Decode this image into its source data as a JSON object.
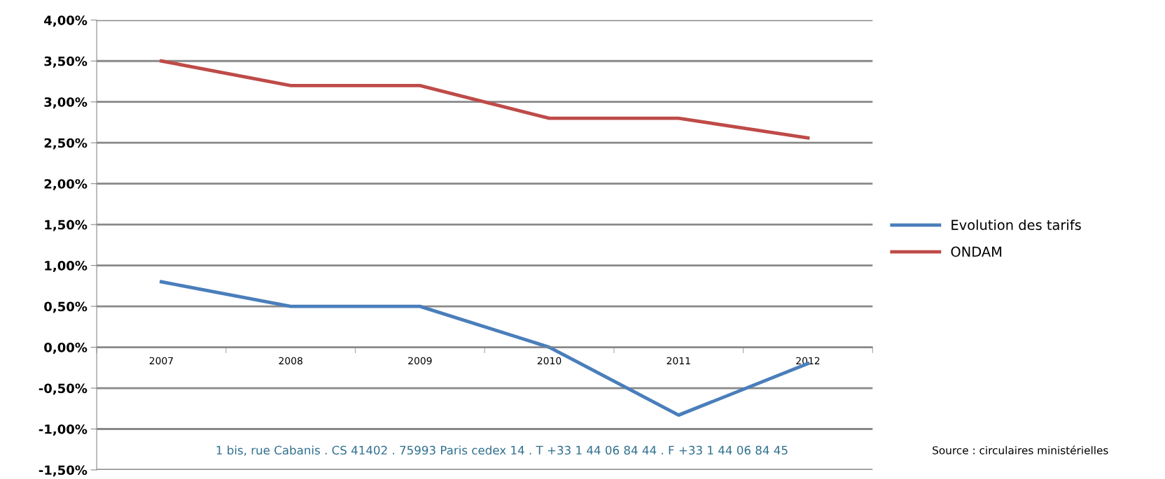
{
  "chart_data": {
    "type": "line",
    "categories": [
      "2007",
      "2008",
      "2009",
      "2010",
      "2011",
      "2012"
    ],
    "series": [
      {
        "name": "Evolution des tarifs",
        "color": "#4a7ebb",
        "values": [
          0.8,
          0.5,
          0.5,
          0.0,
          -0.83,
          -0.2
        ]
      },
      {
        "name": "ONDAM",
        "color": "#be4b48",
        "values": [
          3.5,
          3.2,
          3.2,
          2.8,
          2.8,
          2.56
        ]
      }
    ],
    "ylim": [
      -1.5,
      4.0
    ],
    "yticks": [
      {
        "value": -1.5,
        "label": "-1,50%"
      },
      {
        "value": -1.0,
        "label": "-1,00%"
      },
      {
        "value": -0.5,
        "label": "-0,50%"
      },
      {
        "value": 0,
        "label": "0,00%"
      },
      {
        "value": 0.5,
        "label": "0,50%"
      },
      {
        "value": 1.0,
        "label": "1,00%"
      },
      {
        "value": 1.5,
        "label": "1,50%"
      },
      {
        "value": 2.0,
        "label": "2,00%"
      },
      {
        "value": 2.5,
        "label": "2,50%"
      },
      {
        "value": 3.0,
        "label": "3,00%"
      },
      {
        "value": 3.5,
        "label": "3,50%"
      },
      {
        "value": 4.0,
        "label": "4,00%"
      }
    ],
    "grid": "y",
    "legend": "right",
    "marker": "none",
    "line_style": "solid",
    "annotations": [
      "1 bis, rue Cabanis . CS 41402 . 75993 Paris cedex 14 . T +33 1 44 06 84 44 . F +33 1 44 06 84 45",
      "Source : circulaires ministérielles"
    ]
  }
}
